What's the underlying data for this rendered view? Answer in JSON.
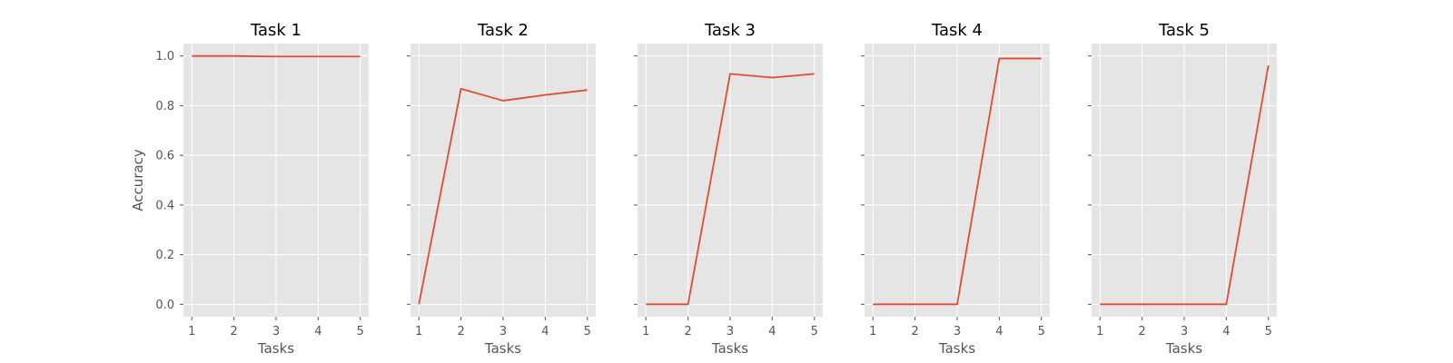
{
  "chart_data": [
    {
      "type": "line",
      "title": "Task 1",
      "xlabel": "Tasks",
      "ylabel": "Accuracy",
      "x": [
        1,
        2,
        3,
        4,
        5
      ],
      "y": [
        1.0,
        1.0,
        0.998,
        0.998,
        0.998
      ],
      "xticks": [
        "1",
        "2",
        "3",
        "4",
        "5"
      ],
      "yticks": [
        "0.0",
        "0.2",
        "0.4",
        "0.6",
        "0.8",
        "1.0"
      ],
      "ylim": [
        -0.05,
        1.05
      ],
      "xlim": [
        0.8,
        5.2
      ],
      "grid": true
    },
    {
      "type": "line",
      "title": "Task 2",
      "xlabel": "Tasks",
      "ylabel": "",
      "x": [
        1,
        2,
        3,
        4,
        5
      ],
      "y": [
        0.0,
        0.868,
        0.82,
        0.843,
        0.863
      ],
      "xticks": [
        "1",
        "2",
        "3",
        "4",
        "5"
      ],
      "yticks": [],
      "ylim": [
        -0.05,
        1.05
      ],
      "xlim": [
        0.8,
        5.2
      ],
      "grid": true
    },
    {
      "type": "line",
      "title": "Task 3",
      "xlabel": "Tasks",
      "ylabel": "",
      "x": [
        1,
        2,
        3,
        4,
        5
      ],
      "y": [
        0.0,
        0.0,
        0.928,
        0.913,
        0.928
      ],
      "xticks": [
        "1",
        "2",
        "3",
        "4",
        "5"
      ],
      "yticks": [],
      "ylim": [
        -0.05,
        1.05
      ],
      "xlim": [
        0.8,
        5.2
      ],
      "grid": true
    },
    {
      "type": "line",
      "title": "Task 4",
      "xlabel": "Tasks",
      "ylabel": "",
      "x": [
        1,
        2,
        3,
        4,
        5
      ],
      "y": [
        0.0,
        0.0,
        0.0,
        0.99,
        0.99
      ],
      "xticks": [
        "1",
        "2",
        "3",
        "4",
        "5"
      ],
      "yticks": [],
      "ylim": [
        -0.05,
        1.05
      ],
      "xlim": [
        0.8,
        5.2
      ],
      "grid": true
    },
    {
      "type": "line",
      "title": "Task 5",
      "xlabel": "Tasks",
      "ylabel": "",
      "x": [
        1,
        2,
        3,
        4,
        5
      ],
      "y": [
        0.0,
        0.0,
        0.0,
        0.0,
        0.962
      ],
      "xticks": [
        "1",
        "2",
        "3",
        "4",
        "5"
      ],
      "yticks": [],
      "ylim": [
        -0.05,
        1.05
      ],
      "xlim": [
        0.8,
        5.2
      ],
      "grid": true
    }
  ],
  "colors": {
    "line": "#e24a33",
    "plot_bg": "#e5e5e5",
    "grid": "#ffffff",
    "tick": "#555555",
    "title": "#000000"
  }
}
